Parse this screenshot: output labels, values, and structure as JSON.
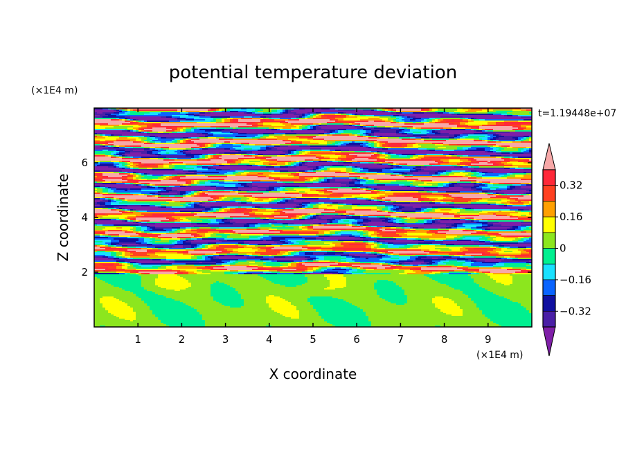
{
  "chart_data": {
    "type": "heatmap",
    "title": "potential temperature deviation",
    "xlabel": "X coordinate",
    "ylabel": "Z coordinate",
    "x_unit": "(×1E4 m)",
    "y_unit": "(×1E4 m)",
    "time_label": "t=1.19448e+07",
    "xlim": [
      0,
      10
    ],
    "ylim": [
      0,
      8
    ],
    "x_ticks": [
      "1",
      "2",
      "3",
      "4",
      "5",
      "6",
      "7",
      "8",
      "9"
    ],
    "y_ticks": [
      "2",
      "4",
      "6"
    ],
    "colorbar": {
      "tick_labels": [
        "0.32",
        "0.16",
        "0",
        "-0.16",
        "-0.32"
      ],
      "levels": [
        -0.4,
        -0.32,
        -0.24,
        -0.16,
        -0.08,
        0,
        0.08,
        0.16,
        0.24,
        0.32,
        0.4
      ],
      "colors": [
        "#7f1fa8",
        "#4a1fa6",
        "#1010a0",
        "#0a64ff",
        "#19e1ff",
        "#00f090",
        "#8ce61e",
        "#ffff00",
        "#ffa000",
        "#ff4020",
        "#ff2838",
        "#f7a8a8"
      ]
    },
    "field_description_bands": [
      {
        "z_range": [
          0,
          1.9
        ],
        "range_values": [
          0.0,
          0.16
        ]
      },
      {
        "z_range": [
          1.9,
          3.6
        ],
        "range_values": [
          -0.4,
          0.4
        ]
      },
      {
        "z_range": [
          3.6,
          8
        ],
        "range_values": [
          -0.4,
          0.4
        ]
      }
    ]
  }
}
